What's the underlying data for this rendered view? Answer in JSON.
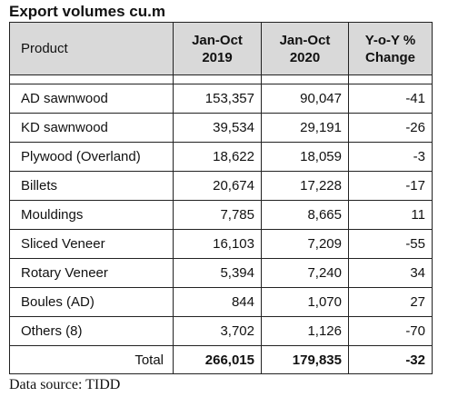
{
  "title": "Export volumes cu.m",
  "headers": {
    "product": "Product",
    "col2019_line1": "Jan-Oct",
    "col2019_line2": "2019",
    "col2020_line1": "Jan-Oct",
    "col2020_line2": "2020",
    "change_line1": "Y-o-Y %",
    "change_line2": "Change"
  },
  "rows": [
    {
      "product": "AD sawnwood",
      "v2019": "153,357",
      "v2020": "90,047",
      "change": "-41"
    },
    {
      "product": "KD sawnwood",
      "v2019": "39,534",
      "v2020": "29,191",
      "change": "-26"
    },
    {
      "product": "Plywood (Overland)",
      "v2019": "18,622",
      "v2020": "18,059",
      "change": "-3"
    },
    {
      "product": "Billets",
      "v2019": "20,674",
      "v2020": "17,228",
      "change": "-17"
    },
    {
      "product": "Mouldings",
      "v2019": "7,785",
      "v2020": "8,665",
      "change": "11"
    },
    {
      "product": "Sliced Veneer",
      "v2019": "16,103",
      "v2020": "7,209",
      "change": "-55"
    },
    {
      "product": "Rotary Veneer",
      "v2019": "5,394",
      "v2020": "7,240",
      "change": "34"
    },
    {
      "product": "Boules (AD)",
      "v2019": "844",
      "v2020": "1,070",
      "change": "27"
    },
    {
      "product": "Others (8)",
      "v2019": "3,702",
      "v2020": "1,126",
      "change": "-70"
    }
  ],
  "total": {
    "label": "Total",
    "v2019": "266,015",
    "v2020": "179,835",
    "change": "-32"
  },
  "source": "Data source: TIDD",
  "colors": {
    "header_bg": "#d9d9d9",
    "border": "#222222"
  }
}
